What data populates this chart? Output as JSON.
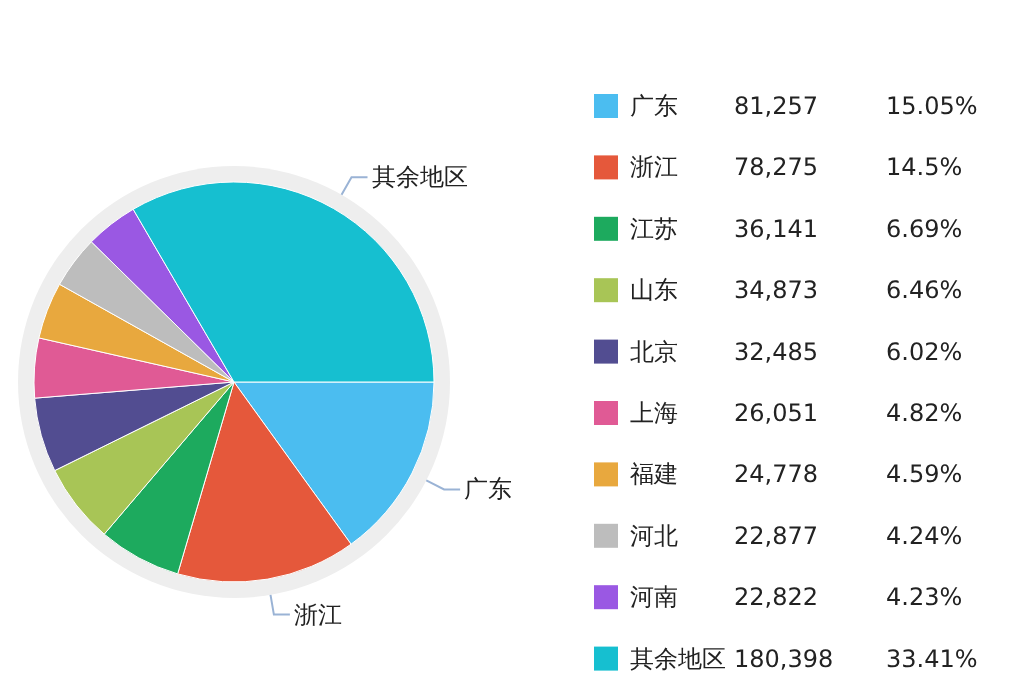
{
  "chart_data": {
    "type": "pie",
    "categories": [
      "广东",
      "浙江",
      "江苏",
      "山东",
      "北京",
      "上海",
      "福建",
      "河北",
      "河南",
      "其余地区"
    ],
    "values": [
      81257,
      78275,
      36141,
      34873,
      32485,
      26051,
      24778,
      22877,
      22822,
      180398
    ],
    "colors": [
      "#4bbdf0",
      "#e5583b",
      "#1daa5e",
      "#a8c556",
      "#524d91",
      "#e05a95",
      "#e8a83e",
      "#bdbdbd",
      "#9a58e3",
      "#16bfd0"
    ],
    "value_labels": [
      "81,257",
      "78,275",
      "36,141",
      "34,873",
      "32,485",
      "26,051",
      "24,778",
      "22,877",
      "22,822",
      "180,398"
    ],
    "annotations": [
      "15.05%",
      "14.5%",
      "6.69%",
      "6.46%",
      "6.02%",
      "4.82%",
      "4.59%",
      "4.24%",
      "4.23%",
      "33.41%"
    ],
    "legend": "right"
  }
}
